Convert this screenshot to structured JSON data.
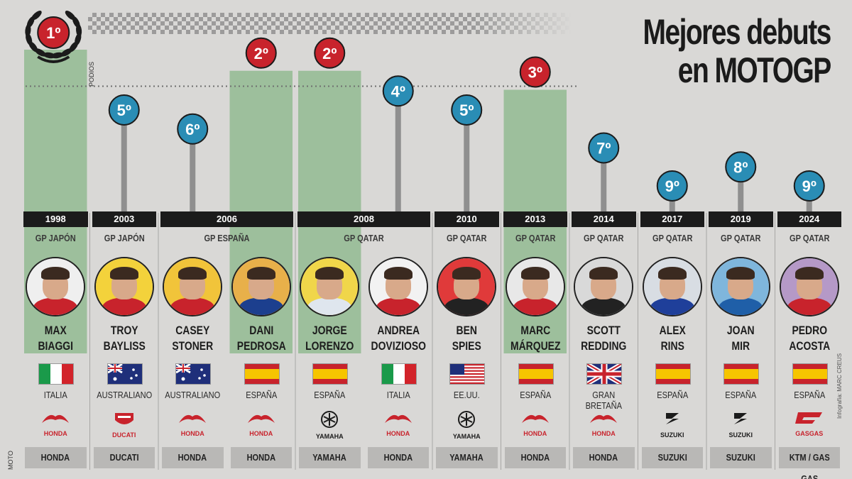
{
  "title_lines": [
    "Mejores debuts",
    "en MOTOGP"
  ],
  "side_labels": {
    "podios": "PODIOS",
    "moto": "MOTO"
  },
  "credit": "Infografía: MARC CREUS",
  "colors": {
    "podium_bar": "#9dbf9c",
    "blue_badge": "#2a8db5",
    "red_badge": "#c8232c",
    "stem": "#8f8f8f",
    "year_bar": "#1b1b1b"
  },
  "chart_data": {
    "type": "bar",
    "ylabel": "",
    "ylim": [
      1,
      9
    ],
    "podium_threshold": 3,
    "categories": [
      "MAX BIAGGI",
      "TROY BAYLISS",
      "CASEY STONER",
      "DANI PEDROSA",
      "JORGE LORENZO",
      "ANDREA DOVIZIOSO",
      "BEN SPIES",
      "MARC MÁRQUEZ",
      "SCOTT REDDING",
      "ALEX RINS",
      "JOAN MIR",
      "PEDRO ACOSTA"
    ],
    "values": [
      1,
      5,
      6,
      2,
      2,
      4,
      5,
      3,
      7,
      9,
      8,
      9
    ],
    "labels": [
      "1º",
      "5º",
      "6º",
      "2º",
      "2º",
      "4º",
      "5º",
      "3º",
      "7º",
      "9º",
      "8º",
      "9º"
    ]
  },
  "year_groups": [
    {
      "year": "1998",
      "gp": "GP JAPÓN",
      "span": 1
    },
    {
      "year": "2003",
      "gp": "GP JAPÓN",
      "span": 1
    },
    {
      "year": "2006",
      "gp": "GP ESPAÑA",
      "span": 2
    },
    {
      "year": "2008",
      "gp": "GP QATAR",
      "span": 2
    },
    {
      "year": "2010",
      "gp": "GP QATAR",
      "span": 1
    },
    {
      "year": "2013",
      "gp": "GP QATAR",
      "span": 1
    },
    {
      "year": "2014",
      "gp": "GP QATAR",
      "span": 1
    },
    {
      "year": "2017",
      "gp": "GP QATAR",
      "span": 1
    },
    {
      "year": "2019",
      "gp": "GP QATAR",
      "span": 1
    },
    {
      "year": "2024",
      "gp": "GP QATAR",
      "span": 1
    }
  ],
  "riders": [
    {
      "first": "MAX",
      "last": "BIAGGI",
      "nat": "ITALIA",
      "flag": "italy",
      "logo": "honda",
      "logo_text": "HONDA",
      "brand": "HONDA",
      "suit": "#c8232c",
      "bg": "#efefef"
    },
    {
      "first": "TROY",
      "last": "BAYLISS",
      "nat": "AUSTRALIANO",
      "flag": "australia",
      "logo": "ducati",
      "logo_text": "DUCATI",
      "brand": "DUCATI",
      "suit": "#c8232c",
      "bg": "#f3d23b"
    },
    {
      "first": "CASEY",
      "last": "STONER",
      "nat": "AUSTRALIANO",
      "flag": "australia",
      "logo": "honda",
      "logo_text": "HONDA",
      "brand": "HONDA",
      "suit": "#c8232c",
      "bg": "#f1c43a"
    },
    {
      "first": "DANI",
      "last": "PEDROSA",
      "nat": "ESPAÑA",
      "flag": "spain",
      "logo": "honda",
      "logo_text": "HONDA",
      "brand": "HONDA",
      "suit": "#1c3f8e",
      "bg": "#e8b04a"
    },
    {
      "first": "JORGE",
      "last": "LORENZO",
      "nat": "ESPAÑA",
      "flag": "spain",
      "logo": "yamaha",
      "logo_text": "YAMAHA",
      "brand": "YAMAHA",
      "suit": "#dfe6ee",
      "bg": "#f0d64a"
    },
    {
      "first": "ANDREA",
      "last": "DOVIZIOSO",
      "nat": "ITALIA",
      "flag": "italy",
      "logo": "honda",
      "logo_text": "HONDA",
      "brand": "HONDA",
      "suit": "#c8232c",
      "bg": "#f2f2f2"
    },
    {
      "first": "BEN",
      "last": "SPIES",
      "nat": "EE.UU.",
      "flag": "usa",
      "logo": "yamaha",
      "logo_text": "YAMAHA",
      "brand": "YAMAHA",
      "suit": "#222222",
      "bg": "#e03a3a"
    },
    {
      "first": "MARC",
      "last": "MÁRQUEZ",
      "nat": "ESPAÑA",
      "flag": "spain",
      "logo": "honda",
      "logo_text": "HONDA",
      "brand": "HONDA",
      "suit": "#c8232c",
      "bg": "#e8e8e8"
    },
    {
      "first": "SCOTT",
      "last": "REDDING",
      "nat": "GRAN BRETAÑA",
      "flag": "uk",
      "logo": "honda",
      "logo_text": "HONDA",
      "brand": "HONDA",
      "suit": "#222222",
      "bg": "#d9d9d9"
    },
    {
      "first": "ALEX",
      "last": "RINS",
      "nat": "ESPAÑA",
      "flag": "spain",
      "logo": "suzuki",
      "logo_text": "SUZUKI",
      "brand": "SUZUKI",
      "suit": "#1f3f9a",
      "bg": "#d8dde3"
    },
    {
      "first": "JOAN",
      "last": "MIR",
      "nat": "ESPAÑA",
      "flag": "spain",
      "logo": "suzuki",
      "logo_text": "SUZUKI",
      "brand": "SUZUKI",
      "suit": "#1f5fa8",
      "bg": "#7fb6dc"
    },
    {
      "first": "PEDRO",
      "last": "ACOSTA",
      "nat": "ESPAÑA",
      "flag": "spain",
      "logo": "gasgas",
      "logo_text": "GASGAS",
      "brand": "KTM / GAS GAS",
      "suit": "#c8232c",
      "bg": "#b599c7"
    }
  ]
}
